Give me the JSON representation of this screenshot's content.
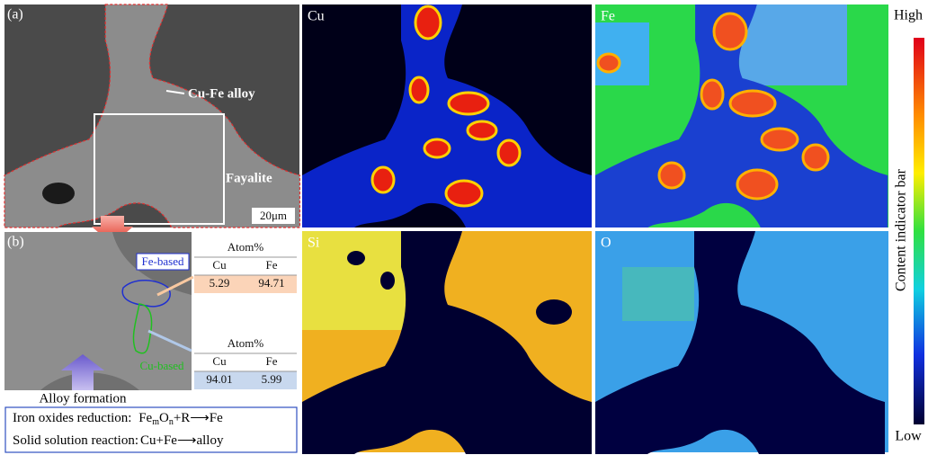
{
  "panel_a": {
    "label": "(a)",
    "annotations": [
      "Cu-Fe alloy",
      "Fayalite"
    ],
    "scale_bar": "20μm"
  },
  "maps": [
    {
      "label": "Cu"
    },
    {
      "label": "Fe"
    },
    {
      "label": "Si"
    },
    {
      "label": "O"
    }
  ],
  "color_bar": {
    "high": "High",
    "low": "Low",
    "title": "Content indicator bar"
  },
  "panel_b": {
    "label": "(b)",
    "regions": [
      "Fe-based",
      "Cu-based"
    ],
    "tables": [
      {
        "title": "Atom%",
        "header": [
          "Cu",
          "Fe"
        ],
        "row": [
          5.29,
          94.71
        ]
      },
      {
        "title": "Atom%",
        "header": [
          "Cu",
          "Fe"
        ],
        "row": [
          94.01,
          5.99
        ]
      }
    ],
    "caption": "Alloy formation"
  },
  "reactions": [
    {
      "name": "Iron oxides reduction:",
      "formula": [
        "Fe",
        "m",
        "O",
        "n",
        "+R⟶Fe"
      ]
    },
    {
      "name": "Solid solution reaction:",
      "formula": [
        "Cu+Fe⟶alloy"
      ]
    }
  ]
}
